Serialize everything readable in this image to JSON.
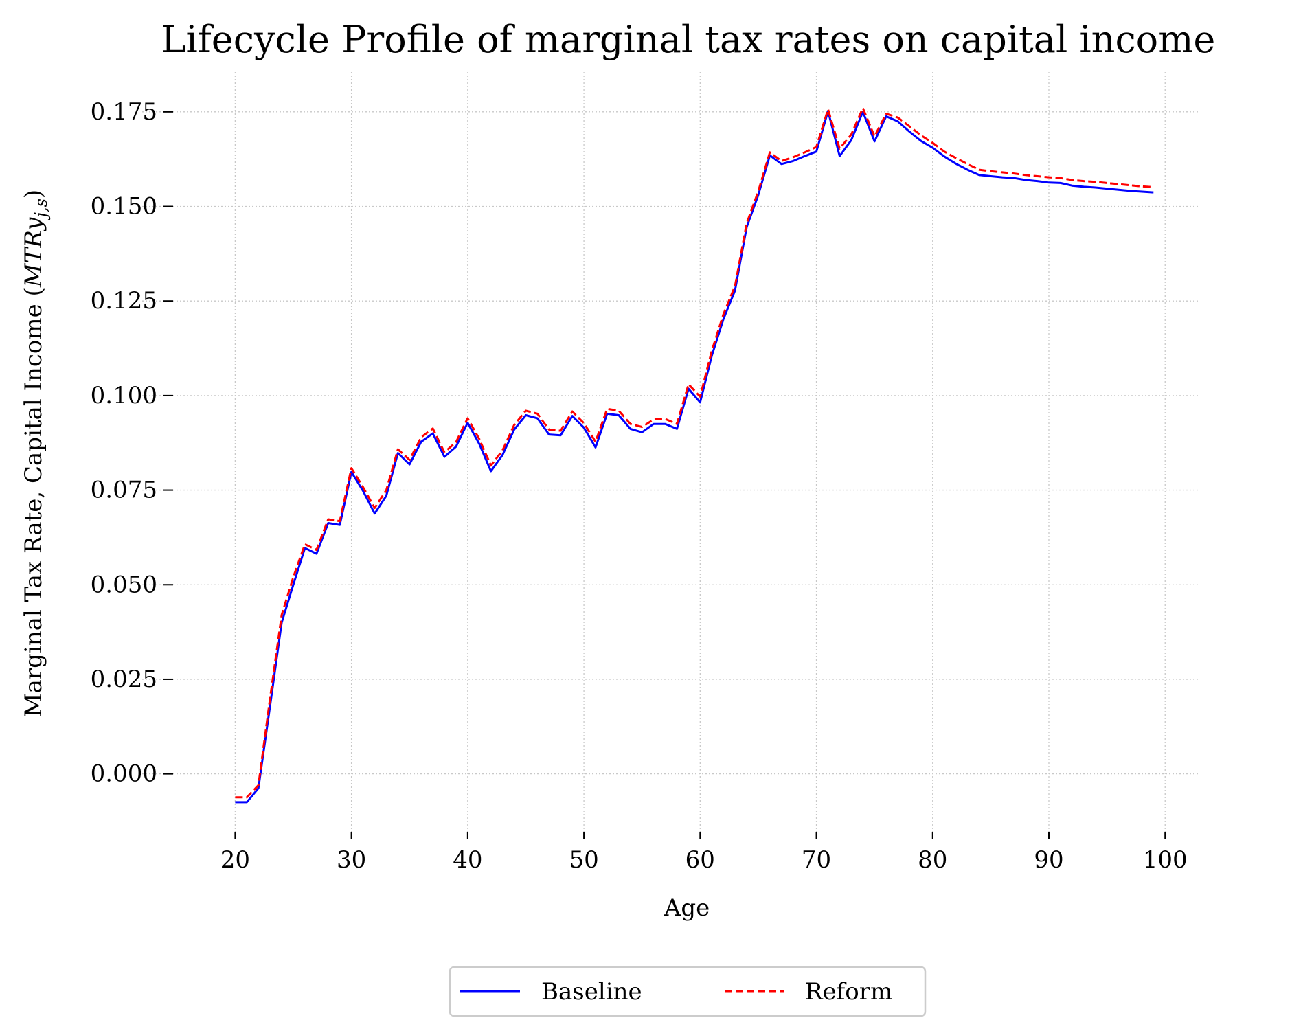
{
  "chart_data": {
    "type": "line",
    "title": "Lifecycle Profile of marginal tax rates on capital income",
    "xlabel": "Age",
    "ylabel": "Marginal Tax Rate, Capital Income (",
    "ylabel_math_main": "MTRy",
    "ylabel_math_sub": "j,s",
    "ylabel_close": ")",
    "xlim": [
      12,
      103
    ],
    "ylim": [
      -0.0155,
      0.1855
    ],
    "x_ticks": [
      20,
      30,
      40,
      50,
      60,
      70,
      80,
      90,
      100
    ],
    "y_ticks": [
      0.0,
      0.025,
      0.05,
      0.075,
      0.1,
      0.125,
      0.15,
      0.175
    ],
    "y_tick_labels": [
      "0.000",
      "0.025",
      "0.050",
      "0.075",
      "0.100",
      "0.125",
      "0.150",
      "0.175"
    ],
    "grid": true,
    "legend_position": "bottom-center, below plot",
    "x": [
      20,
      21,
      22,
      23,
      24,
      25,
      26,
      27,
      28,
      29,
      30,
      31,
      32,
      33,
      34,
      35,
      36,
      37,
      38,
      39,
      40,
      41,
      42,
      43,
      44,
      45,
      46,
      47,
      48,
      49,
      50,
      51,
      52,
      53,
      54,
      55,
      56,
      57,
      58,
      59,
      60,
      61,
      62,
      63,
      64,
      65,
      66,
      67,
      68,
      69,
      70,
      71,
      72,
      73,
      74,
      75,
      76,
      77,
      78,
      79,
      80,
      81,
      82,
      83,
      84,
      85,
      86,
      87,
      88,
      89,
      90,
      91,
      92,
      93,
      94,
      95,
      96,
      97,
      98,
      99
    ],
    "series": [
      {
        "name": "Baseline",
        "color": "#0000ff",
        "style": "solid",
        "values": [
          -0.0075,
          -0.0075,
          -0.0038,
          0.018,
          0.04,
          0.05,
          0.0597,
          0.0582,
          0.0663,
          0.0658,
          0.0798,
          0.0748,
          0.0688,
          0.0735,
          0.0848,
          0.0818,
          0.0878,
          0.09,
          0.0838,
          0.0865,
          0.0928,
          0.0872,
          0.08,
          0.0843,
          0.091,
          0.0948,
          0.094,
          0.0897,
          0.0895,
          0.0946,
          0.0915,
          0.0863,
          0.0952,
          0.0948,
          0.0912,
          0.0903,
          0.0925,
          0.0925,
          0.0912,
          0.1018,
          0.0982,
          0.1105,
          0.1202,
          0.1278,
          0.1445,
          0.153,
          0.1635,
          0.1612,
          0.162,
          0.1633,
          0.1645,
          0.1752,
          0.1633,
          0.1675,
          0.175,
          0.1672,
          0.1738,
          0.1725,
          0.1698,
          0.1673,
          0.1655,
          0.1632,
          0.1613,
          0.1597,
          0.1583,
          0.158,
          0.1577,
          0.1575,
          0.157,
          0.1567,
          0.1563,
          0.1562,
          0.1555,
          0.1552,
          0.155,
          0.1547,
          0.1544,
          0.1541,
          0.1539,
          0.1537
        ]
      },
      {
        "name": "Reform",
        "color": "#ff0000",
        "style": "dashed",
        "values": [
          -0.0062,
          -0.0062,
          -0.003,
          0.02,
          0.042,
          0.052,
          0.0607,
          0.0592,
          0.0673,
          0.0668,
          0.0808,
          0.0758,
          0.0703,
          0.075,
          0.0858,
          0.083,
          0.089,
          0.0913,
          0.085,
          0.0877,
          0.094,
          0.0885,
          0.0815,
          0.0855,
          0.0922,
          0.096,
          0.0952,
          0.091,
          0.0907,
          0.0958,
          0.0927,
          0.0878,
          0.0965,
          0.096,
          0.0925,
          0.0917,
          0.0937,
          0.0938,
          0.0925,
          0.103,
          0.0997,
          0.1118,
          0.1215,
          0.129,
          0.1455,
          0.154,
          0.1643,
          0.162,
          0.163,
          0.1643,
          0.1657,
          0.1757,
          0.1653,
          0.169,
          0.176,
          0.1685,
          0.1745,
          0.1735,
          0.1712,
          0.1688,
          0.1668,
          0.1645,
          0.1628,
          0.1612,
          0.1597,
          0.1593,
          0.159,
          0.1587,
          0.1583,
          0.158,
          0.1577,
          0.1575,
          0.157,
          0.1567,
          0.1565,
          0.1562,
          0.1559,
          0.1556,
          0.1553,
          0.1551
        ]
      }
    ]
  }
}
